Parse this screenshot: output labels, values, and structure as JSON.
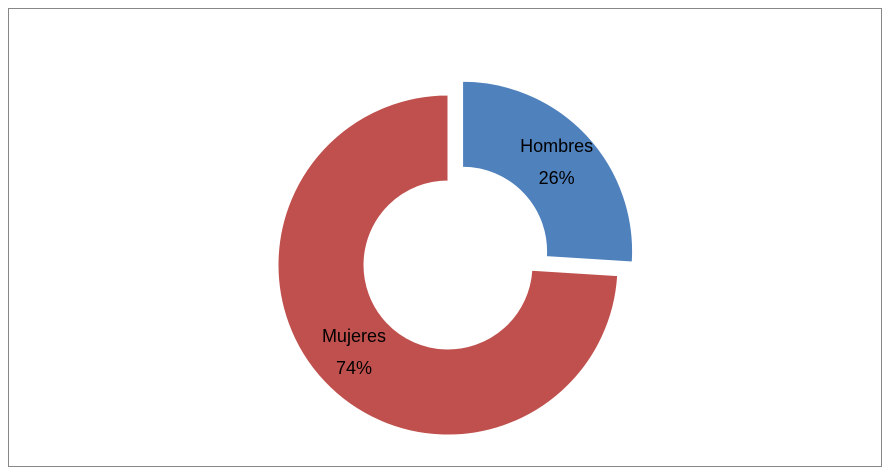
{
  "chart_data": {
    "type": "donut",
    "categories": [
      "Hombres",
      "Mujeres"
    ],
    "values": [
      26,
      74
    ],
    "value_labels": [
      "26%",
      "74%"
    ],
    "colors": [
      "#4f81bd",
      "#c0504d"
    ]
  }
}
